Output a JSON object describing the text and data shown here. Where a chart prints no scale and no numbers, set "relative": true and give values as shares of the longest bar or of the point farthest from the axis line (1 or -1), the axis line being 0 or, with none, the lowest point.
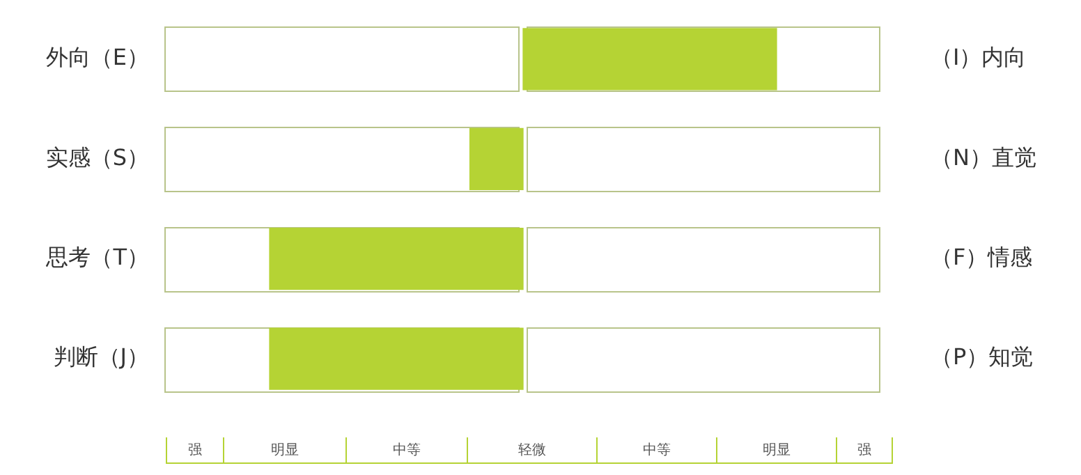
{
  "chart_data": {
    "type": "bar",
    "orientation": "horizontal",
    "relative": true,
    "categories": [
      "外向（E）",
      "实感（S）",
      "思考（T）",
      "判断（J）"
    ],
    "values": [
      1,
      -0.21,
      -1,
      -1
    ],
    "color": "#b5d334",
    "annotations": [
      "（I）内向",
      "（N）直觉",
      "（F）情感",
      "（P）知觉",
      "强",
      "明显",
      "中等",
      "轻微",
      "中等",
      "明显",
      "强"
    ]
  }
}
